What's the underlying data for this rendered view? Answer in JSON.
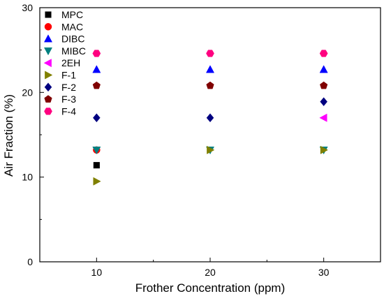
{
  "chart_data": {
    "type": "scatter",
    "xlabel": "Frother Concentration (ppm)",
    "ylabel": "Air Fraction (%)",
    "xlim": [
      5,
      35
    ],
    "ylim": [
      0,
      30
    ],
    "x_ticks": [
      "10",
      "20",
      "30"
    ],
    "y_ticks": [
      "0",
      "10",
      "20",
      "30"
    ],
    "legend_position": "top-left",
    "grid": false,
    "series": [
      {
        "name": "MPC",
        "marker": "square",
        "color": "#000000",
        "x": [
          10
        ],
        "y": [
          11.4
        ]
      },
      {
        "name": "MAC",
        "marker": "circle",
        "color": "#ff0000",
        "x": [
          10
        ],
        "y": [
          13.2
        ]
      },
      {
        "name": "DIBC",
        "marker": "triangle-up",
        "color": "#0000ff",
        "x": [
          10,
          20,
          30
        ],
        "y": [
          22.7,
          22.7,
          22.7
        ]
      },
      {
        "name": "MIBC",
        "marker": "triangle-down",
        "color": "#008080",
        "x": [
          10,
          20,
          30
        ],
        "y": [
          13.2,
          13.2,
          13.2
        ]
      },
      {
        "name": "2EH",
        "marker": "triangle-left",
        "color": "#ff00ff",
        "x": [
          30
        ],
        "y": [
          17.0
        ]
      },
      {
        "name": "F-1",
        "marker": "triangle-right",
        "color": "#808000",
        "x": [
          10,
          20,
          30
        ],
        "y": [
          9.5,
          13.2,
          13.2
        ]
      },
      {
        "name": "F-2",
        "marker": "diamond",
        "color": "#000080",
        "x": [
          10,
          20,
          30
        ],
        "y": [
          17.0,
          17.0,
          18.9
        ]
      },
      {
        "name": "F-3",
        "marker": "pentagon",
        "color": "#800000",
        "x": [
          10,
          20,
          30
        ],
        "y": [
          20.8,
          20.8,
          20.8
        ]
      },
      {
        "name": "F-4",
        "marker": "hexagon",
        "color": "#ff0080",
        "x": [
          10,
          20,
          30
        ],
        "y": [
          24.6,
          24.6,
          24.6
        ]
      }
    ]
  }
}
